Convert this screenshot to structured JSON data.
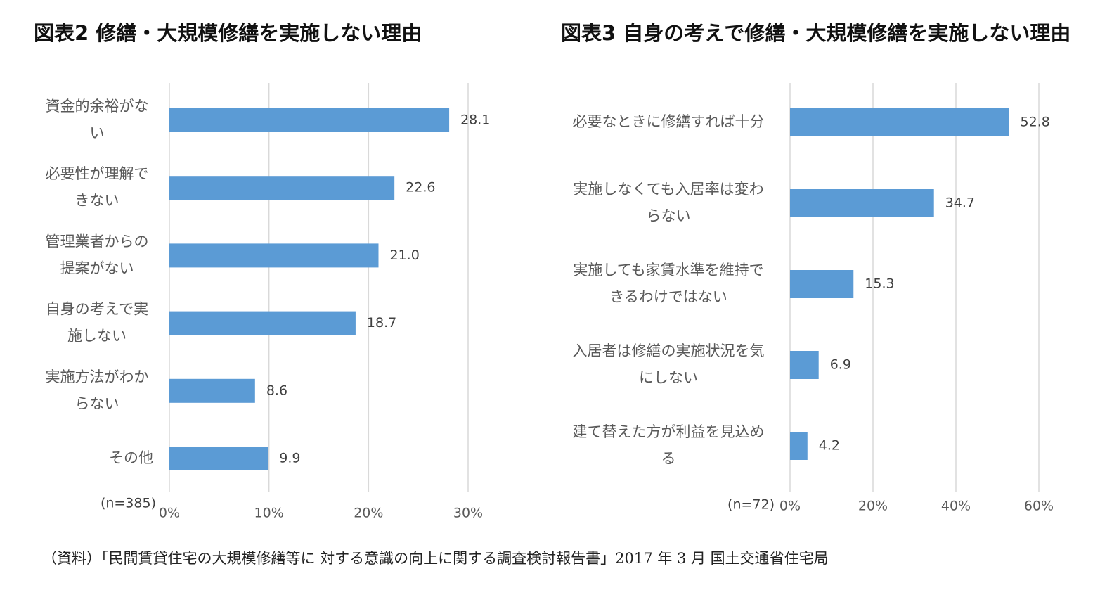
{
  "chart_data": [
    {
      "type": "bar",
      "orientation": "horizontal",
      "title": "図表2 修繕・大規模修繕を実施しない理由",
      "annotation": "(n=385)",
      "categories": [
        "資金的余裕がない",
        "必要性が理解できない",
        "管理業者からの提案がない",
        "自身の考えで実施しない",
        "実施方法がわからない",
        "その他"
      ],
      "values": [
        28.1,
        22.6,
        21.0,
        18.7,
        8.6,
        9.9
      ],
      "value_labels": [
        "28.1",
        "22.6",
        "21.0",
        "18.7",
        "8.6",
        "9.9"
      ],
      "color": "#5b9bd5",
      "xlim": [
        0,
        30
      ],
      "xticks": [
        {
          "value": 0,
          "label": "0%"
        },
        {
          "value": 10,
          "label": "10%"
        },
        {
          "value": 20,
          "label": "20%"
        },
        {
          "value": 30,
          "label": "30%"
        }
      ],
      "grid": true
    },
    {
      "type": "bar",
      "orientation": "horizontal",
      "title": "図表3 自身の考えで修繕・大規模修繕を実施しない理由",
      "annotation": "(n=72)",
      "categories": [
        "必要なときに修繕すれば十分",
        "実施しなくても入居率は変わらない",
        "実施しても家賃水準を維持できるわけではない",
        "入居者は修繕の実施状況を気にしない",
        "建て替えた方が利益を見込める"
      ],
      "values": [
        52.8,
        34.7,
        15.3,
        6.9,
        4.2
      ],
      "value_labels": [
        "52.8",
        "34.7",
        "15.3",
        "6.9",
        "4.2"
      ],
      "color": "#5b9bd5",
      "xlim": [
        0,
        60
      ],
      "xticks": [
        {
          "value": 0,
          "label": "0%"
        },
        {
          "value": 20,
          "label": "20%"
        },
        {
          "value": 40,
          "label": "40%"
        },
        {
          "value": 60,
          "label": "60%"
        }
      ],
      "grid": true
    }
  ],
  "source": "（資料）「民間賃貸住宅の大規模修繕等に 対する意識の向上に関する調査検討報告書」2017 年 3 月 国土交通省住宅局"
}
